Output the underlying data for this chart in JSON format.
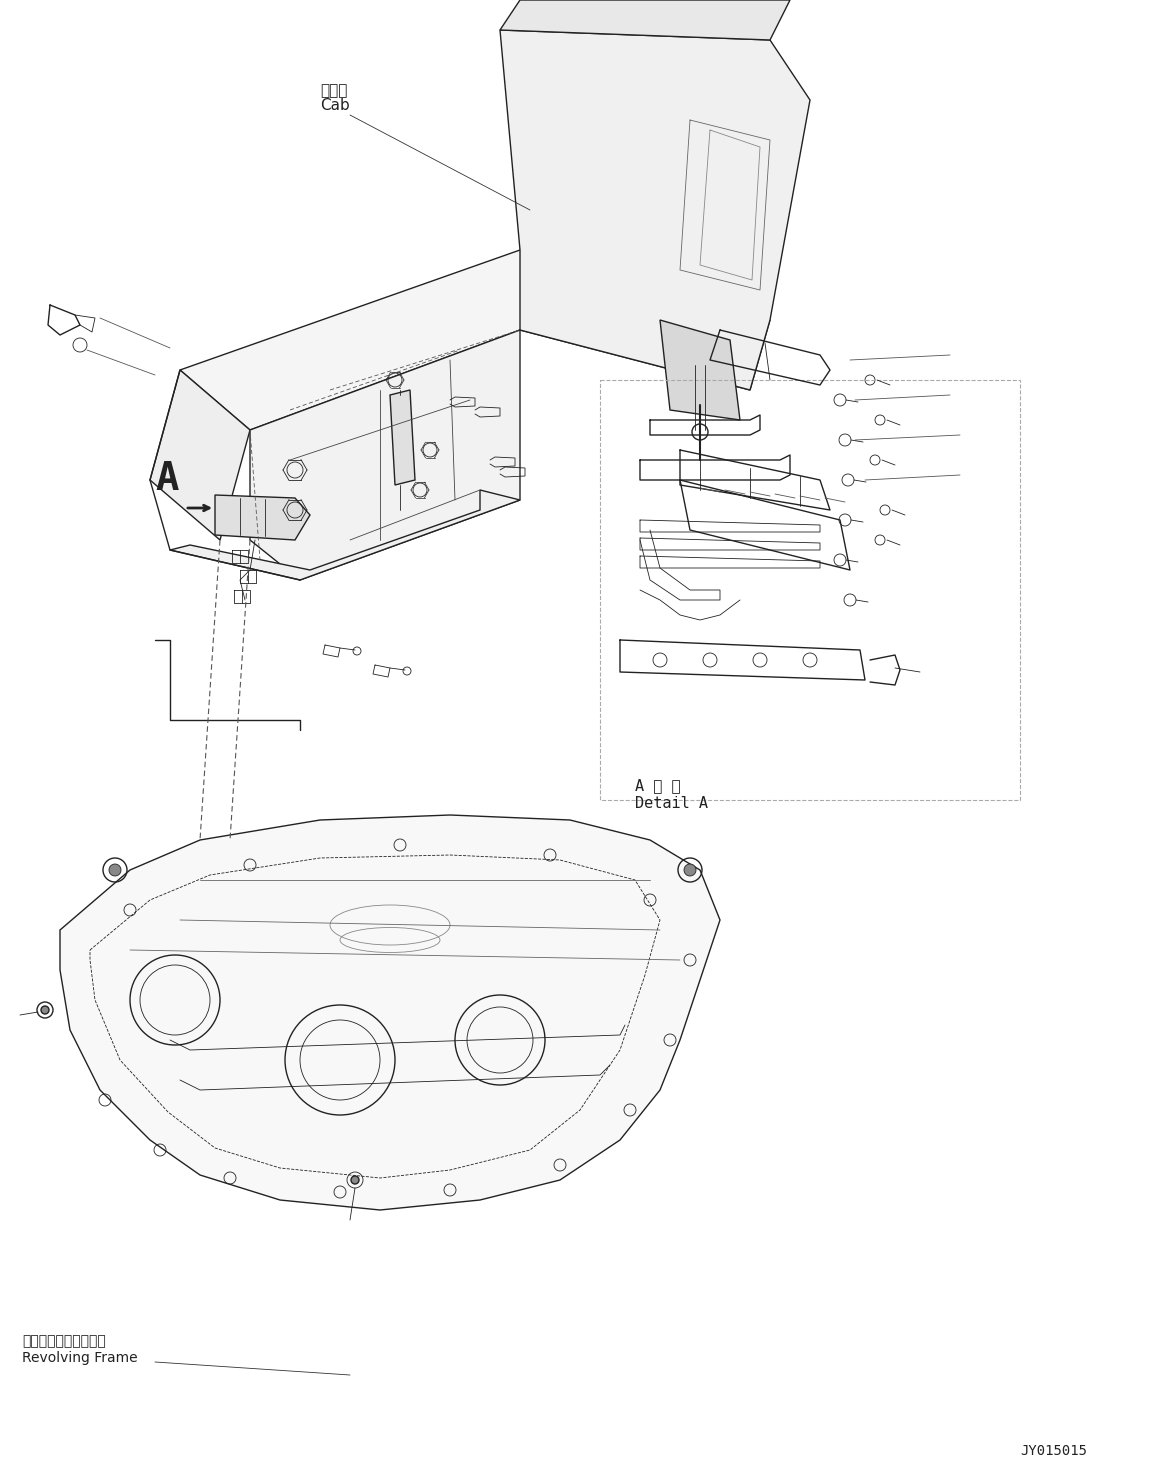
{
  "figsize": [
    11.63,
    14.77
  ],
  "dpi": 100,
  "bg_color": "#ffffff",
  "title_code": "JY015015",
  "label_cab_jp": "キャブ",
  "label_cab_en": "Cab",
  "label_revolving_jp": "レボルビングフレーム",
  "label_revolving_en": "Revolving Frame",
  "label_detail_jp": "A 詳 細",
  "label_detail_en": "Detail A",
  "label_A": "A"
}
